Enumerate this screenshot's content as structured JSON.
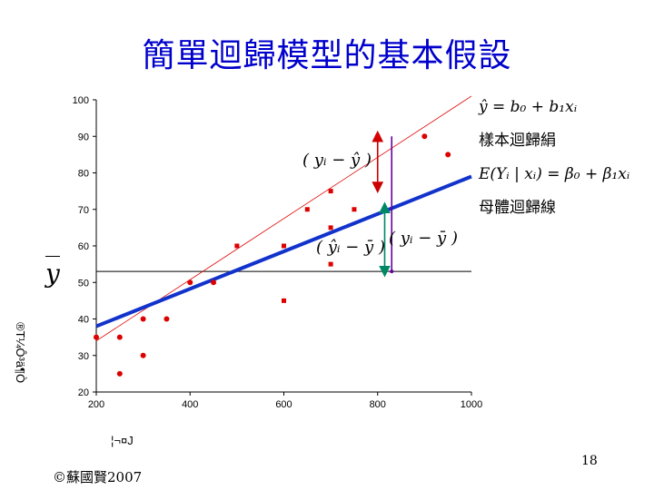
{
  "title": "簡單迴歸模型的基本假設",
  "page_number": "18",
  "copyright": "©蘇國賢2007",
  "y_axis_garbled_label": "®T¼Ô³ä¶Ò",
  "x_axis_garbled_label": "¦¬¤J",
  "ybar_label": "y",
  "annotations": {
    "sample_eq": "ŷ = b₀ + b₁xᵢ",
    "sample_label": "樣本迴歸絹",
    "pop_eq": "E(Yᵢ | xᵢ) = β₀ + β₁xᵢ",
    "pop_label": "母體迴歸線",
    "resid_label": "( yᵢ − ŷ )",
    "explained_label": "( ŷᵢ − ȳ )",
    "total_label": "( yᵢ − ȳ )"
  },
  "colors": {
    "title": "#0000cc",
    "points": "#dd0000",
    "population_line": "#1133cc",
    "sample_line": "#dd0000",
    "resid_arrow": "#cc0000",
    "explained_arrow": "#008866",
    "total_arrow": "#660099"
  },
  "chart_data": {
    "type": "scatter",
    "xlim": [
      200,
      1000
    ],
    "ylim": [
      20,
      100
    ],
    "xticks": [
      200,
      400,
      600,
      800,
      1000
    ],
    "yticks": [
      20,
      30,
      40,
      50,
      60,
      70,
      80,
      90,
      100
    ],
    "points": [
      {
        "x": 200,
        "y": 35,
        "shape": "circle"
      },
      {
        "x": 250,
        "y": 35,
        "shape": "circle"
      },
      {
        "x": 250,
        "y": 25,
        "shape": "circle"
      },
      {
        "x": 300,
        "y": 40,
        "shape": "circle"
      },
      {
        "x": 300,
        "y": 30,
        "shape": "circle"
      },
      {
        "x": 350,
        "y": 40,
        "shape": "circle"
      },
      {
        "x": 400,
        "y": 50,
        "shape": "circle"
      },
      {
        "x": 450,
        "y": 50,
        "shape": "circle"
      },
      {
        "x": 500,
        "y": 60,
        "shape": "square"
      },
      {
        "x": 600,
        "y": 60,
        "shape": "square"
      },
      {
        "x": 600,
        "y": 45,
        "shape": "square"
      },
      {
        "x": 650,
        "y": 70,
        "shape": "square"
      },
      {
        "x": 700,
        "y": 75,
        "shape": "square"
      },
      {
        "x": 700,
        "y": 65,
        "shape": "square"
      },
      {
        "x": 700,
        "y": 55,
        "shape": "square"
      },
      {
        "x": 750,
        "y": 70,
        "shape": "square"
      },
      {
        "x": 800,
        "y": 90,
        "shape": "circle"
      },
      {
        "x": 900,
        "y": 90,
        "shape": "circle"
      },
      {
        "x": 950,
        "y": 85,
        "shape": "circle"
      }
    ],
    "population_line": [
      [
        200,
        38
      ],
      [
        1000,
        79
      ]
    ],
    "sample_line": [
      [
        200,
        34
      ],
      [
        1000,
        101
      ]
    ],
    "mean_y": 53,
    "resid_arrow": {
      "x": 800,
      "y1": 90,
      "y2": 76
    },
    "explained_arrow": {
      "x": 815,
      "y1": 70.5,
      "y2": 53
    },
    "total_arrow": {
      "x": 830,
      "y1": 90,
      "y2": 53
    }
  }
}
